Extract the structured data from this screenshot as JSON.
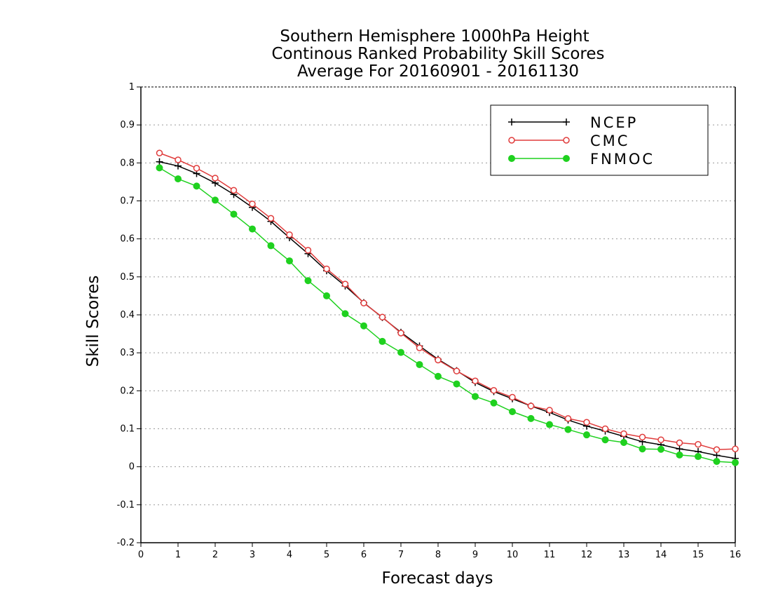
{
  "chart_data": {
    "type": "line",
    "title_lines": [
      "Southern Hemisphere 1000hPa Height",
      "Continous Ranked Probability Skill Scores",
      "Average For 20160901 - 20161130"
    ],
    "xlabel": "Forecast days",
    "ylabel": "Skill Scores",
    "xlim": [
      0,
      16
    ],
    "ylim": [
      -0.2,
      1
    ],
    "x_ticks": [
      "0",
      "1",
      "2",
      "3",
      "4",
      "5",
      "6",
      "7",
      "8",
      "9",
      "10",
      "11",
      "12",
      "13",
      "14",
      "15",
      "16"
    ],
    "y_ticks": [
      "1",
      "0.9",
      "0.8",
      "0.7",
      "0.6",
      "0.5",
      "0.4",
      "0.3",
      "0.2",
      "0.1",
      "0",
      "-0.1",
      "-0.2"
    ],
    "grid": "horizontal dotted",
    "legend_position": "top-right",
    "x": [
      0.5,
      1,
      1.5,
      2,
      2.5,
      3,
      3.5,
      4,
      4.5,
      5,
      5.5,
      6,
      6.5,
      7,
      7.5,
      8,
      8.5,
      9,
      9.5,
      10,
      10.5,
      11,
      11.5,
      12,
      12.5,
      13,
      13.5,
      14,
      14.5,
      15,
      15.5,
      16
    ],
    "series": [
      {
        "name": "NCEP",
        "color": "#000000",
        "marker": "plus",
        "values": [
          0.803,
          0.792,
          0.772,
          0.747,
          0.717,
          0.683,
          0.646,
          0.603,
          0.561,
          0.516,
          0.476,
          0.432,
          0.393,
          0.354,
          0.318,
          0.283,
          0.253,
          0.222,
          0.198,
          0.179,
          0.16,
          0.143,
          0.123,
          0.107,
          0.094,
          0.08,
          0.066,
          0.058,
          0.047,
          0.04,
          0.03,
          0.022
        ]
      },
      {
        "name": "CMC",
        "color": "#e03c3c",
        "marker": "open-circle",
        "values": [
          0.826,
          0.808,
          0.786,
          0.76,
          0.728,
          0.692,
          0.654,
          0.611,
          0.57,
          0.521,
          0.481,
          0.431,
          0.394,
          0.352,
          0.313,
          0.281,
          0.252,
          0.226,
          0.201,
          0.183,
          0.16,
          0.149,
          0.127,
          0.117,
          0.1,
          0.087,
          0.078,
          0.071,
          0.063,
          0.059,
          0.045,
          0.047
        ]
      },
      {
        "name": "FNMOC",
        "color": "#1fd11f",
        "marker": "filled-circle",
        "values": [
          0.787,
          0.758,
          0.739,
          0.702,
          0.665,
          0.626,
          0.582,
          0.542,
          0.49,
          0.45,
          0.403,
          0.371,
          0.33,
          0.301,
          0.269,
          0.238,
          0.218,
          0.185,
          0.168,
          0.145,
          0.127,
          0.111,
          0.098,
          0.084,
          0.071,
          0.064,
          0.047,
          0.046,
          0.031,
          0.027,
          0.014,
          0.011
        ]
      }
    ]
  }
}
